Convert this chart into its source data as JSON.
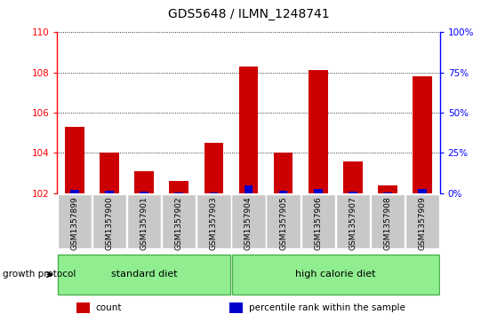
{
  "title": "GDS5648 / ILMN_1248741",
  "samples": [
    "GSM1357899",
    "GSM1357900",
    "GSM1357901",
    "GSM1357902",
    "GSM1357903",
    "GSM1357904",
    "GSM1357905",
    "GSM1357906",
    "GSM1357907",
    "GSM1357908",
    "GSM1357909"
  ],
  "counts": [
    105.3,
    104.0,
    103.1,
    102.6,
    104.5,
    108.3,
    104.0,
    108.1,
    103.6,
    102.4,
    107.8
  ],
  "percentiles": [
    2.0,
    1.5,
    1.0,
    0.5,
    0.5,
    5.0,
    1.5,
    2.5,
    1.0,
    0.5,
    2.5
  ],
  "ylim_left": [
    102,
    110
  ],
  "ylim_right": [
    0,
    100
  ],
  "yticks_left": [
    102,
    104,
    106,
    108,
    110
  ],
  "yticks_right": [
    0,
    25,
    50,
    75,
    100
  ],
  "bar_color": "#cc0000",
  "percentile_color": "#0000cc",
  "bar_width": 0.55,
  "groups": [
    {
      "label": "standard diet",
      "start": 0,
      "end": 4,
      "color": "#90ee90"
    },
    {
      "label": "high calorie diet",
      "start": 5,
      "end": 10,
      "color": "#90ee90"
    }
  ],
  "group_label": "growth protocol",
  "legend_items": [
    {
      "label": "count",
      "color": "#cc0000"
    },
    {
      "label": "percentile rank within the sample",
      "color": "#0000cc"
    }
  ],
  "tick_area_color": "#c8c8c8",
  "baseline": 102,
  "fig_width": 5.59,
  "fig_height": 3.63,
  "dpi": 100
}
